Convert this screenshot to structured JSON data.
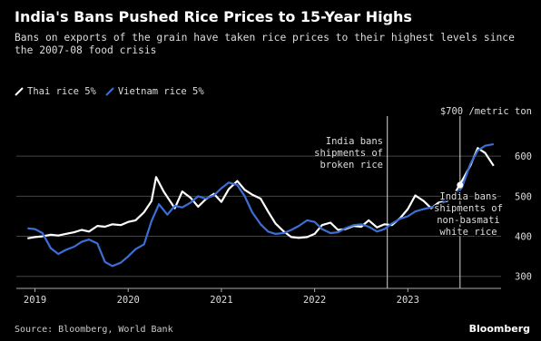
{
  "chart_data": {
    "type": "line",
    "title": "India's Bans Pushed Rice Prices to 15-Year Highs",
    "subtitle": "Bans on exports of the grain have taken rice prices to their highest levels since the 2007-08 food crisis",
    "unit_label": "$700 /metric ton",
    "xlim": [
      2018.8,
      2024.0
    ],
    "ylim": [
      270,
      700
    ],
    "x_ticks": [
      {
        "value": 2019,
        "label": "2019"
      },
      {
        "value": 2020,
        "label": "2020"
      },
      {
        "value": 2021,
        "label": "2021"
      },
      {
        "value": 2022,
        "label": "2022"
      },
      {
        "value": 2023,
        "label": "2023"
      }
    ],
    "y_ticks": [
      {
        "value": 300,
        "label": "300"
      },
      {
        "value": 400,
        "label": "400"
      },
      {
        "value": 500,
        "label": "500"
      },
      {
        "value": 600,
        "label": "600"
      }
    ],
    "grid": "horizontal",
    "legend_position": "top-left",
    "series": [
      {
        "name": "Thai rice 5%",
        "color": "#ffffff",
        "points": [
          [
            2018.92,
            395
          ],
          [
            2019.0,
            398
          ],
          [
            2019.08,
            400
          ],
          [
            2019.17,
            404
          ],
          [
            2019.25,
            402
          ],
          [
            2019.33,
            406
          ],
          [
            2019.42,
            410
          ],
          [
            2019.5,
            416
          ],
          [
            2019.58,
            412
          ],
          [
            2019.67,
            426
          ],
          [
            2019.75,
            424
          ],
          [
            2019.83,
            430
          ],
          [
            2019.92,
            428
          ],
          [
            2020.0,
            436
          ],
          [
            2020.08,
            440
          ],
          [
            2020.17,
            460
          ],
          [
            2020.25,
            488
          ],
          [
            2020.3,
            548
          ],
          [
            2020.38,
            512
          ],
          [
            2020.42,
            498
          ],
          [
            2020.5,
            470
          ],
          [
            2020.58,
            512
          ],
          [
            2020.67,
            496
          ],
          [
            2020.75,
            474
          ],
          [
            2020.83,
            492
          ],
          [
            2020.92,
            506
          ],
          [
            2021.0,
            486
          ],
          [
            2021.08,
            518
          ],
          [
            2021.17,
            538
          ],
          [
            2021.25,
            516
          ],
          [
            2021.33,
            504
          ],
          [
            2021.42,
            494
          ],
          [
            2021.5,
            462
          ],
          [
            2021.58,
            432
          ],
          [
            2021.67,
            412
          ],
          [
            2021.75,
            398
          ],
          [
            2021.83,
            396
          ],
          [
            2021.92,
            398
          ],
          [
            2022.0,
            406
          ],
          [
            2022.08,
            428
          ],
          [
            2022.17,
            434
          ],
          [
            2022.25,
            416
          ],
          [
            2022.33,
            418
          ],
          [
            2022.42,
            426
          ],
          [
            2022.5,
            424
          ],
          [
            2022.58,
            440
          ],
          [
            2022.67,
            422
          ],
          [
            2022.75,
            430
          ],
          [
            2022.83,
            428
          ],
          [
            2022.92,
            446
          ],
          [
            2023.0,
            468
          ],
          [
            2023.08,
            502
          ],
          [
            2023.17,
            488
          ],
          [
            2023.25,
            470
          ],
          [
            2023.33,
            484
          ],
          [
            2023.42,
            488
          ],
          [
            2023.5,
            506
          ],
          [
            2023.58,
            538
          ],
          [
            2023.67,
            576
          ],
          [
            2023.75,
            620
          ],
          [
            2023.83,
            608
          ],
          [
            2023.92,
            576
          ]
        ]
      },
      {
        "name": "Vietnam rice 5%",
        "color": "#3b6fd6",
        "points": [
          [
            2018.92,
            420
          ],
          [
            2019.0,
            418
          ],
          [
            2019.08,
            408
          ],
          [
            2019.17,
            370
          ],
          [
            2019.25,
            356
          ],
          [
            2019.33,
            366
          ],
          [
            2019.42,
            374
          ],
          [
            2019.5,
            386
          ],
          [
            2019.58,
            392
          ],
          [
            2019.67,
            382
          ],
          [
            2019.75,
            336
          ],
          [
            2019.83,
            326
          ],
          [
            2019.92,
            334
          ],
          [
            2020.0,
            350
          ],
          [
            2020.08,
            368
          ],
          [
            2020.17,
            380
          ],
          [
            2020.25,
            438
          ],
          [
            2020.33,
            480
          ],
          [
            2020.42,
            454
          ],
          [
            2020.5,
            476
          ],
          [
            2020.58,
            472
          ],
          [
            2020.67,
            484
          ],
          [
            2020.75,
            500
          ],
          [
            2020.83,
            494
          ],
          [
            2020.92,
            502
          ],
          [
            2021.0,
            520
          ],
          [
            2021.08,
            534
          ],
          [
            2021.17,
            528
          ],
          [
            2021.25,
            500
          ],
          [
            2021.33,
            460
          ],
          [
            2021.42,
            430
          ],
          [
            2021.5,
            412
          ],
          [
            2021.58,
            406
          ],
          [
            2021.67,
            408
          ],
          [
            2021.75,
            416
          ],
          [
            2021.83,
            426
          ],
          [
            2021.92,
            440
          ],
          [
            2022.0,
            436
          ],
          [
            2022.08,
            418
          ],
          [
            2022.17,
            408
          ],
          [
            2022.25,
            410
          ],
          [
            2022.33,
            420
          ],
          [
            2022.42,
            428
          ],
          [
            2022.5,
            430
          ],
          [
            2022.58,
            424
          ],
          [
            2022.67,
            412
          ],
          [
            2022.75,
            418
          ],
          [
            2022.83,
            432
          ],
          [
            2022.92,
            444
          ],
          [
            2023.0,
            450
          ],
          [
            2023.08,
            462
          ],
          [
            2023.17,
            468
          ],
          [
            2023.25,
            472
          ],
          [
            2023.33,
            478
          ],
          [
            2023.42,
            490
          ],
          [
            2023.5,
            500
          ],
          [
            2023.58,
            522
          ],
          [
            2023.67,
            580
          ],
          [
            2023.75,
            614
          ],
          [
            2023.83,
            626
          ],
          [
            2023.92,
            630
          ]
        ]
      }
    ],
    "annotations": [
      {
        "x": 2022.78,
        "lines": [
          "India bans",
          "shipments of",
          "broken rice"
        ]
      },
      {
        "x": 2023.56,
        "marker_y": 528,
        "lines": [
          "India bans",
          "shipments of",
          "non-basmati",
          "white rice"
        ]
      }
    ]
  },
  "source": "Source: Bloomberg, World Bank",
  "brand": "Bloomberg"
}
